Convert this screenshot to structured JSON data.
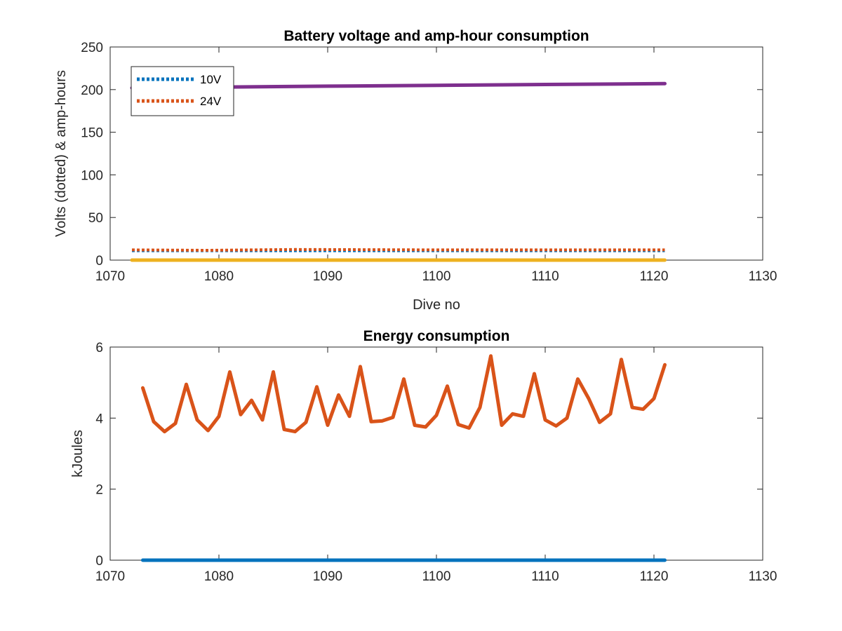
{
  "chart_data": [
    {
      "type": "line",
      "title": "Battery voltage and amp-hour consumption",
      "xlabel": "Dive no",
      "ylabel": "Volts (dotted) & amp-hours",
      "xlim": [
        1070,
        1130
      ],
      "ylim": [
        0,
        250
      ],
      "xticks": [
        1070,
        1080,
        1090,
        1100,
        1110,
        1120,
        1130
      ],
      "yticks": [
        0,
        50,
        100,
        150,
        200,
        250
      ],
      "grid": false,
      "legend_position": "top-left",
      "series": [
        {
          "name": "10V",
          "style": "dotted",
          "color": "#0072BD",
          "x": [
            1072,
            1121
          ],
          "y": [
            11,
            11
          ]
        },
        {
          "name": "24V",
          "style": "dotted",
          "color": "#D95319",
          "x": [
            1072,
            1079,
            1087,
            1100,
            1121
          ],
          "y": [
            12,
            11.5,
            12.5,
            12,
            12
          ]
        },
        {
          "name": "",
          "style": "solid",
          "color": "#EDB120",
          "x": [
            1072,
            1121
          ],
          "y": [
            0,
            0
          ]
        },
        {
          "name": "",
          "style": "solid",
          "color": "#7E2F8E",
          "x": [
            1072,
            1080,
            1090,
            1100,
            1110,
            1121
          ],
          "y": [
            202,
            203,
            204,
            205,
            206,
            207
          ]
        }
      ]
    },
    {
      "type": "line",
      "title": "Energy consumption",
      "xlabel": "",
      "ylabel": "kJoules",
      "xlim": [
        1070,
        1130
      ],
      "ylim": [
        0,
        6
      ],
      "xticks": [
        1070,
        1080,
        1090,
        1100,
        1110,
        1120,
        1130
      ],
      "yticks": [
        0,
        2,
        4,
        6
      ],
      "grid": false,
      "series": [
        {
          "name": "",
          "color": "#0072BD",
          "x": [
            1073,
            1121
          ],
          "y": [
            0,
            0
          ]
        },
        {
          "name": "",
          "color": "#D95319",
          "x": [
            1073,
            1074,
            1075,
            1076,
            1077,
            1078,
            1079,
            1080,
            1081,
            1082,
            1083,
            1084,
            1085,
            1086,
            1087,
            1088,
            1089,
            1090,
            1091,
            1092,
            1093,
            1094,
            1095,
            1096,
            1097,
            1098,
            1099,
            1100,
            1101,
            1102,
            1103,
            1104,
            1105,
            1106,
            1107,
            1108,
            1109,
            1110,
            1111,
            1112,
            1113,
            1114,
            1115,
            1116,
            1117,
            1118,
            1119,
            1120,
            1121
          ],
          "y": [
            4.85,
            3.9,
            3.62,
            3.85,
            4.95,
            3.95,
            3.65,
            4.05,
            5.3,
            4.1,
            4.5,
            3.95,
            5.3,
            3.68,
            3.62,
            3.88,
            4.88,
            3.8,
            4.65,
            4.05,
            5.45,
            3.9,
            3.92,
            4.02,
            5.1,
            3.8,
            3.75,
            4.08,
            4.9,
            3.82,
            3.72,
            4.3,
            5.75,
            3.8,
            4.12,
            4.05,
            5.25,
            3.95,
            3.78,
            4.0,
            5.1,
            4.55,
            3.88,
            4.12,
            5.65,
            4.3,
            4.25,
            4.55,
            5.5
          ]
        }
      ]
    }
  ]
}
